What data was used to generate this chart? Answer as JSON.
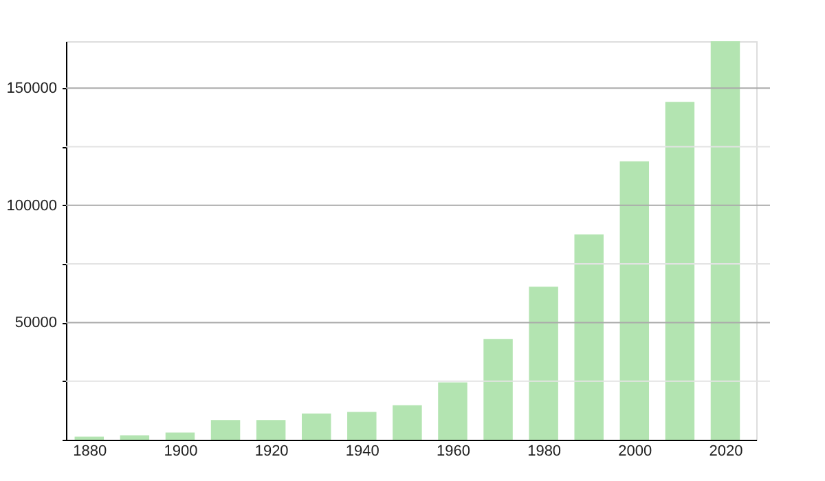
{
  "chart_data": {
    "type": "bar",
    "x": [
      1880,
      1890,
      1900,
      1910,
      1920,
      1930,
      1940,
      1950,
      1960,
      1970,
      1980,
      1990,
      2000,
      2010,
      2020
    ],
    "values": [
      1350,
      1900,
      3100,
      8400,
      8400,
      11200,
      11900,
      14700,
      24500,
      43000,
      65300,
      87600,
      118800,
      144100,
      170000
    ],
    "color": "#b3e4b1",
    "xlim": [
      1876.4,
      2025.3
    ],
    "xticks": [
      1880,
      1900,
      1920,
      1940,
      1960,
      1980,
      2000,
      2020
    ],
    "ylim": [
      0,
      170000
    ],
    "yticks": [
      {
        "value": 0,
        "label": null
      },
      {
        "value": 25000,
        "label": null
      },
      50000,
      {
        "value": 75000,
        "label": null
      },
      100000,
      {
        "value": 125000,
        "label": null
      },
      150000
    ],
    "grid": "y"
  }
}
